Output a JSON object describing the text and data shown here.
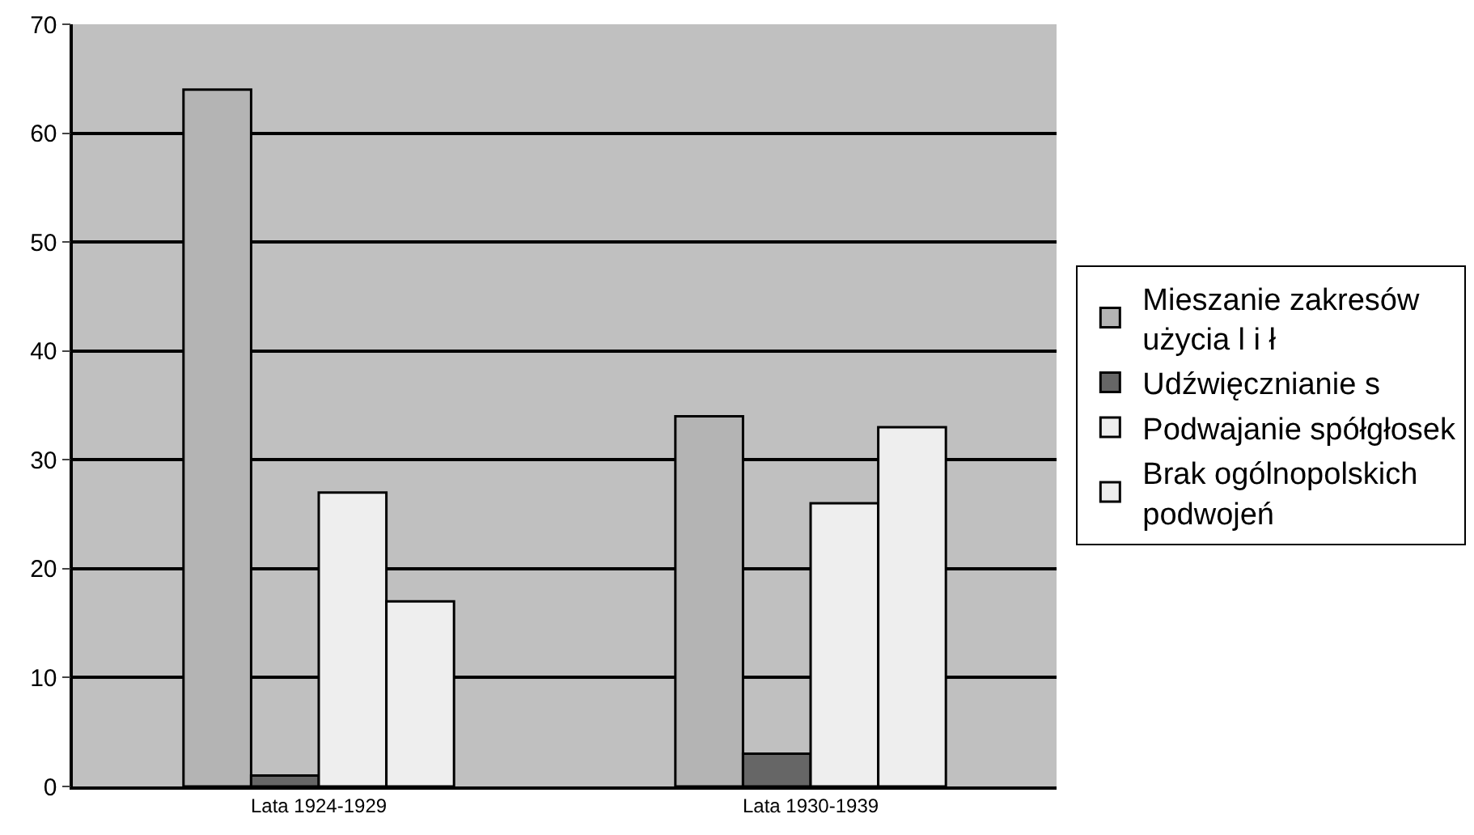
{
  "chart_data": {
    "type": "bar",
    "categories": [
      "Lata 1924-1929",
      "Lata 1930-1939"
    ],
    "series": [
      {
        "name": "Mieszanie zakresów użycia l i ł",
        "color": "#b4b4b4",
        "values": [
          64,
          34
        ]
      },
      {
        "name": "Udźwięcznianie s",
        "color": "#666666",
        "values": [
          1,
          3
        ]
      },
      {
        "name": "Podwajanie spółgłosek",
        "color": "#eeeeee",
        "values": [
          27,
          26
        ]
      },
      {
        "name": "Brak ogólnopolskich podwojeń",
        "color": "#eeeeee",
        "values": [
          17,
          33
        ]
      }
    ],
    "ylim": [
      0,
      70
    ],
    "yticks": [
      0,
      10,
      20,
      30,
      40,
      50,
      60,
      70
    ],
    "grid": "y",
    "legend": "right"
  }
}
